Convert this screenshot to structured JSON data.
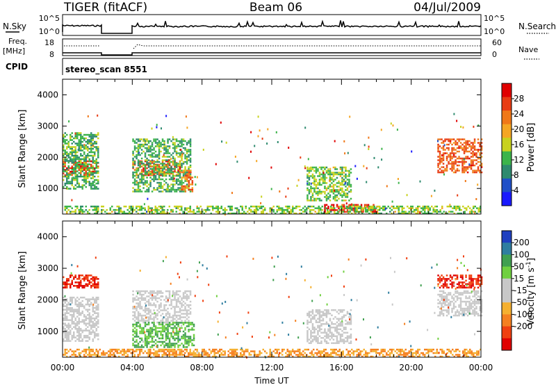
{
  "header": {
    "radar": "TIGER (fitACF)",
    "beam": "Beam 06",
    "date": "04/Jul/2009"
  },
  "strips": {
    "nsky_label": "N.Sky",
    "nsearch_label": "N.Search",
    "nsky_ticks": [
      "10^5",
      "10^0"
    ],
    "nsearch_ticks": [
      "10^5",
      "10^0"
    ],
    "freq_label_line1": "Freq.",
    "freq_label_line2": "[MHz]",
    "freq_ticks": [
      "18",
      "8"
    ],
    "nave_label": "Nave",
    "nave_ticks": [
      "60",
      "0"
    ],
    "cpid_label": "CPID",
    "cpid_value": "stereo_scan 8551"
  },
  "colors": {
    "power_scale": [
      "#1a1aff",
      "#2050c8",
      "#2e8a6e",
      "#3cb44a",
      "#c8d21e",
      "#f5a623",
      "#f07818",
      "#e83c14",
      "#e00000"
    ],
    "velocity_scale": [
      "#e00000",
      "#f04010",
      "#f58020",
      "#f5b030",
      "#c8c8c8",
      "#c8c8c8",
      "#70d040",
      "#40a050",
      "#2f7ea0",
      "#2040c0"
    ],
    "ground_scatter": "#b4b4b4"
  },
  "chart_data": [
    {
      "type": "heatmap",
      "title": "Power",
      "ylabel": "Slant Range [km]",
      "xlabel": "",
      "x_ticks": [
        "00:00",
        "04:00",
        "08:00",
        "12:00",
        "16:00",
        "20:00",
        "00:00"
      ],
      "xlim_hours": [
        0,
        24
      ],
      "y_ticks": [
        "1000",
        "2000",
        "3000",
        "4000"
      ],
      "ylim": [
        180,
        4500
      ],
      "colorbar_label": "Power [dB]",
      "colorbar_ticks": [
        "4",
        "8",
        "12",
        "16",
        "20",
        "24",
        "28"
      ],
      "colorbar_range": [
        0,
        32
      ],
      "data_gap_hours": [
        [
          2.0,
          4.0
        ]
      ],
      "regions": [
        {
          "x": [
            0.0,
            2.0
          ],
          "y": [
            1400,
            1900
          ],
          "value": 27
        },
        {
          "x": [
            0.0,
            2.0
          ],
          "y": [
            1000,
            2800
          ],
          "value": 12
        },
        {
          "x": [
            4.0,
            6.7
          ],
          "y": [
            1450,
            1900
          ],
          "value": 26
        },
        {
          "x": [
            4.0,
            7.3
          ],
          "y": [
            900,
            2600
          ],
          "value": 12
        },
        {
          "x": [
            6.8,
            7.4
          ],
          "y": [
            900,
            1600
          ],
          "value": 24
        },
        {
          "x": [
            14.0,
            16.5
          ],
          "y": [
            600,
            1700
          ],
          "value": 14
        },
        {
          "x": [
            15.0,
            18.0
          ],
          "y": [
            250,
            500
          ],
          "value": 28
        },
        {
          "x": [
            21.5,
            24.0
          ],
          "y": [
            1500,
            2600
          ],
          "value": 25
        },
        {
          "x": [
            0.0,
            24.0
          ],
          "y": [
            200,
            450
          ],
          "value": 14
        }
      ]
    },
    {
      "type": "heatmap",
      "title": "Velocity",
      "ylabel": "Slant Range [km]",
      "xlabel": "Time UT",
      "x_ticks": [
        "00:00",
        "04:00",
        "08:00",
        "12:00",
        "16:00",
        "20:00",
        "00:00"
      ],
      "xlim_hours": [
        0,
        24
      ],
      "y_ticks": [
        "1000",
        "2000",
        "3000",
        "4000"
      ],
      "ylim": [
        180,
        4500
      ],
      "colorbar_label": "Velocity [m s^-1]",
      "colorbar_ticks": [
        "200",
        "100",
        "50",
        "15",
        "-15",
        "-50",
        "-100",
        "-200"
      ],
      "data_gap_hours": [
        [
          2.0,
          4.0
        ]
      ],
      "regions": [
        {
          "x": [
            0.0,
            2.0
          ],
          "y": [
            2400,
            2800
          ],
          "value": -200
        },
        {
          "x": [
            0.0,
            2.0
          ],
          "y": [
            700,
            2100
          ],
          "value": 0
        },
        {
          "x": [
            4.0,
            7.3
          ],
          "y": [
            1300,
            2300
          ],
          "value": 0
        },
        {
          "x": [
            4.0,
            7.5
          ],
          "y": [
            500,
            1300
          ],
          "value": 50
        },
        {
          "x": [
            14.0,
            16.5
          ],
          "y": [
            600,
            1700
          ],
          "value": 0
        },
        {
          "x": [
            0.0,
            24.0
          ],
          "y": [
            200,
            450
          ],
          "value": -50
        },
        {
          "x": [
            21.5,
            24.0
          ],
          "y": [
            2400,
            2800
          ],
          "value": -200
        },
        {
          "x": [
            21.5,
            24.0
          ],
          "y": [
            1500,
            2300
          ],
          "value": 0
        }
      ]
    }
  ]
}
